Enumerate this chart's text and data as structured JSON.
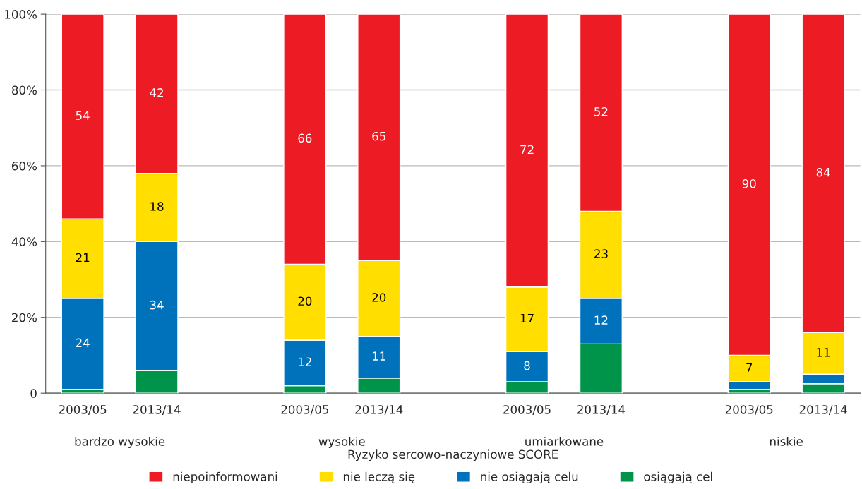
{
  "chart_data": {
    "type": "bar",
    "stacked": true,
    "xlabel": "Ryzyko sercowo-naczyniowe SCORE",
    "categories": [
      "2003/05",
      "2013/14",
      null,
      "2003/05",
      "2013/14",
      null,
      "2003/05",
      "2013/14",
      null,
      "2003/05",
      "2013/14"
    ],
    "annotations": [
      "bardzo wysokie",
      "wysokie",
      "umiarkowane",
      "niskie"
    ],
    "series": [
      {
        "name": "osiągają cel",
        "color": "#00934a",
        "values": [
          1,
          6,
          null,
          2,
          4,
          null,
          3,
          13,
          null,
          1,
          2.5
        ]
      },
      {
        "name": "nie osiągają celu",
        "color": "#0072bc",
        "values": [
          24,
          34,
          null,
          12,
          11,
          null,
          8,
          12,
          null,
          2,
          2.5
        ],
        "value_labels": [
          "24",
          "34",
          null,
          "12",
          "11",
          null,
          "8",
          "12",
          null,
          null,
          null
        ]
      },
      {
        "name": "nie leczą się",
        "color": "#ffde00",
        "values": [
          21,
          18,
          null,
          20,
          20,
          null,
          17,
          23,
          null,
          7,
          11
        ],
        "value_labels": [
          "21",
          "18",
          null,
          "20",
          "20",
          null,
          "17",
          "23",
          null,
          "7",
          "11"
        ]
      },
      {
        "name": "niepoinformowani",
        "color": "#ed1c24",
        "values": [
          54,
          42,
          null,
          66,
          65,
          null,
          72,
          52,
          null,
          90,
          84
        ],
        "value_labels": [
          "54",
          "42",
          null,
          "66",
          "65",
          null,
          "72",
          "52",
          null,
          "90",
          "84"
        ]
      }
    ],
    "ylim": [
      0,
      100
    ],
    "yticks": [
      {
        "value": 0,
        "label": "0"
      },
      {
        "value": 20,
        "label": "20%"
      },
      {
        "value": 40,
        "label": "40%"
      },
      {
        "value": 60,
        "label": "60%"
      },
      {
        "value": 80,
        "label": "80%"
      },
      {
        "value": 100,
        "label": "100%"
      }
    ],
    "grid": "y",
    "legend": "bottom"
  }
}
